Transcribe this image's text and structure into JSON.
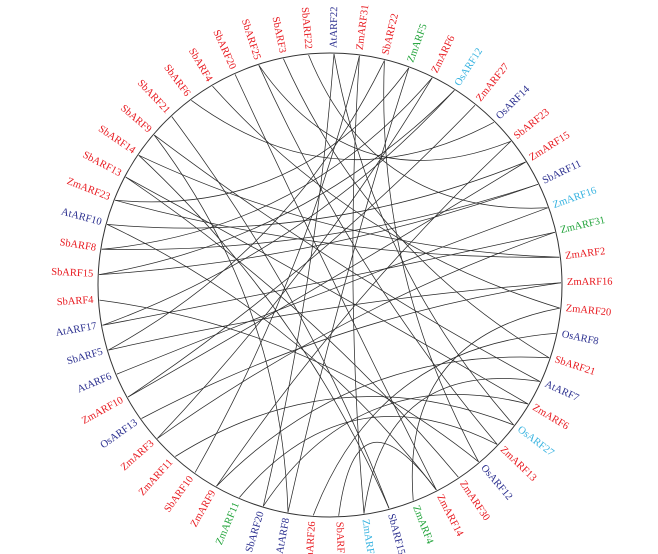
{
  "colors": {
    "red": "#e8191f",
    "navy": "#2b2f8f",
    "green": "#21a33a",
    "cyan": "#35b2e0",
    "circle": "#333333",
    "link": "#2a2a2a",
    "background": "#ffffff"
  },
  "genes": [
    {
      "id": 0,
      "label": "AtARF22",
      "color": "navy"
    },
    {
      "id": 1,
      "label": "ZmARF31",
      "color": "red"
    },
    {
      "id": 2,
      "label": "SbARF22",
      "color": "red"
    },
    {
      "id": 3,
      "label": "ZmARF5",
      "color": "green"
    },
    {
      "id": 4,
      "label": "ZmARF6",
      "color": "red"
    },
    {
      "id": 5,
      "label": "OsARF12",
      "color": "cyan"
    },
    {
      "id": 6,
      "label": "ZmARF27",
      "color": "red"
    },
    {
      "id": 7,
      "label": "OsARF14",
      "color": "navy"
    },
    {
      "id": 8,
      "label": "SbARF23",
      "color": "red"
    },
    {
      "id": 9,
      "label": "ZmARF15",
      "color": "red"
    },
    {
      "id": 10,
      "label": "SbARF11",
      "color": "navy"
    },
    {
      "id": 11,
      "label": "ZmARF16",
      "color": "cyan"
    },
    {
      "id": 12,
      "label": "ZmARF31",
      "color": "green"
    },
    {
      "id": 13,
      "label": "ZmARF2",
      "color": "red"
    },
    {
      "id": 14,
      "label": "ZmARF16",
      "color": "red"
    },
    {
      "id": 15,
      "label": "ZmARF20",
      "color": "red"
    },
    {
      "id": 16,
      "label": "OsARF8",
      "color": "navy"
    },
    {
      "id": 17,
      "label": "SbARF21",
      "color": "red"
    },
    {
      "id": 18,
      "label": "AtARF7",
      "color": "navy"
    },
    {
      "id": 19,
      "label": "ZmARF6",
      "color": "red"
    },
    {
      "id": 20,
      "label": "OsARF27",
      "color": "cyan"
    },
    {
      "id": 21,
      "label": "ZmARF13",
      "color": "red"
    },
    {
      "id": 22,
      "label": "OsARF12",
      "color": "navy"
    },
    {
      "id": 23,
      "label": "ZmARF30",
      "color": "red"
    },
    {
      "id": 24,
      "label": "ZmARF14",
      "color": "red"
    },
    {
      "id": 25,
      "label": "ZmARF4",
      "color": "green"
    },
    {
      "id": 26,
      "label": "SbARF15",
      "color": "navy"
    },
    {
      "id": 27,
      "label": "ZmARF15",
      "color": "cyan"
    },
    {
      "id": 28,
      "label": "SbARF19",
      "color": "red"
    },
    {
      "id": 29,
      "label": "ZmARF26",
      "color": "red"
    },
    {
      "id": 30,
      "label": "AtARF8",
      "color": "navy"
    },
    {
      "id": 31,
      "label": "SbARF20",
      "color": "navy"
    },
    {
      "id": 32,
      "label": "ZmARF11",
      "color": "green"
    },
    {
      "id": 33,
      "label": "ZmARF9",
      "color": "red"
    },
    {
      "id": 34,
      "label": "SbARF10",
      "color": "red"
    },
    {
      "id": 35,
      "label": "ZmARF11",
      "color": "red"
    },
    {
      "id": 36,
      "label": "ZmARF3",
      "color": "red"
    },
    {
      "id": 37,
      "label": "OsARF13",
      "color": "navy"
    },
    {
      "id": 38,
      "label": "ZmARF10",
      "color": "red"
    },
    {
      "id": 39,
      "label": "AtARF6",
      "color": "navy"
    },
    {
      "id": 40,
      "label": "SbARF5",
      "color": "navy"
    },
    {
      "id": 41,
      "label": "AtARF17",
      "color": "navy"
    },
    {
      "id": 42,
      "label": "SbARF4",
      "color": "red"
    },
    {
      "id": 43,
      "label": "SbARF15",
      "color": "red"
    },
    {
      "id": 44,
      "label": "SbARF8",
      "color": "red"
    },
    {
      "id": 45,
      "label": "AtARF10",
      "color": "navy"
    },
    {
      "id": 46,
      "label": "ZmARF23",
      "color": "red"
    },
    {
      "id": 47,
      "label": "SbARF13",
      "color": "red"
    },
    {
      "id": 48,
      "label": "SbARF14",
      "color": "red"
    },
    {
      "id": 49,
      "label": "SbARF9",
      "color": "red"
    },
    {
      "id": 50,
      "label": "SbARF21",
      "color": "red"
    },
    {
      "id": 51,
      "label": "SbARF6",
      "color": "red"
    },
    {
      "id": 52,
      "label": "SbARF4",
      "color": "red"
    },
    {
      "id": 53,
      "label": "SbARF20",
      "color": "red"
    },
    {
      "id": 54,
      "label": "SbARF25",
      "color": "red"
    },
    {
      "id": 55,
      "label": "SbARF3",
      "color": "red"
    },
    {
      "id": 56,
      "label": "SbARF22",
      "color": "red"
    }
  ],
  "links": [
    [
      1,
      34
    ],
    [
      2,
      40
    ],
    [
      3,
      46
    ],
    [
      4,
      44
    ],
    [
      5,
      41
    ],
    [
      6,
      38
    ],
    [
      7,
      51
    ],
    [
      8,
      54
    ],
    [
      9,
      45
    ],
    [
      10,
      43
    ],
    [
      11,
      39
    ],
    [
      12,
      36
    ],
    [
      13,
      48
    ],
    [
      14,
      37
    ],
    [
      15,
      25
    ],
    [
      16,
      29
    ],
    [
      17,
      33
    ],
    [
      18,
      27
    ],
    [
      19,
      31
    ],
    [
      20,
      35
    ],
    [
      21,
      32
    ],
    [
      22,
      42
    ],
    [
      23,
      47
    ],
    [
      24,
      28
    ],
    [
      26,
      50
    ],
    [
      30,
      49
    ],
    [
      0,
      20
    ],
    [
      55,
      17
    ],
    [
      56,
      11
    ],
    [
      53,
      24
    ],
    [
      52,
      15
    ],
    [
      2,
      22
    ],
    [
      40,
      14
    ],
    [
      46,
      13
    ],
    [
      44,
      10
    ],
    [
      36,
      4
    ],
    [
      48,
      26
    ],
    [
      38,
      9
    ],
    [
      41,
      12
    ],
    [
      43,
      5
    ],
    [
      47,
      19
    ],
    [
      54,
      21
    ],
    [
      45,
      24
    ],
    [
      49,
      18
    ],
    [
      0,
      31
    ],
    [
      3,
      30
    ],
    [
      33,
      8
    ],
    [
      1,
      27
    ]
  ]
}
